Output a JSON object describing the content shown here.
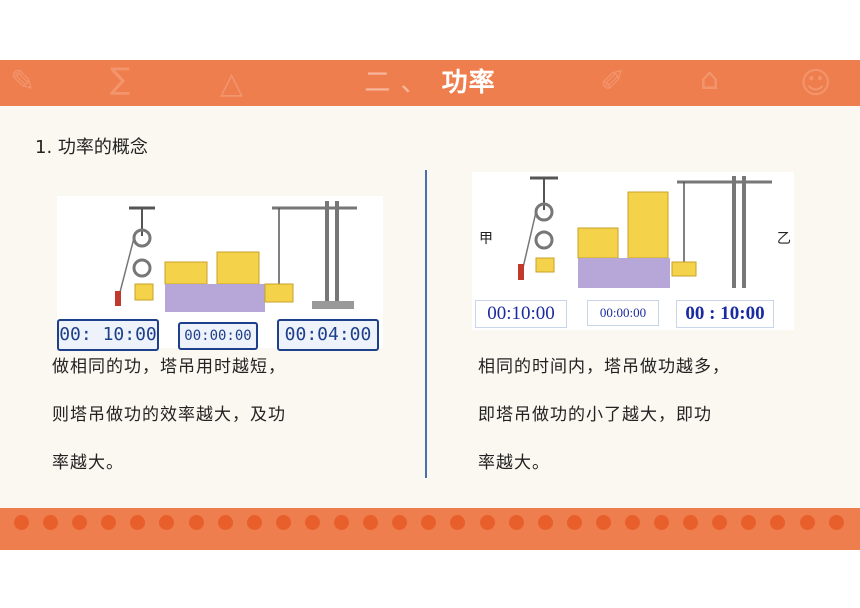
{
  "header": {
    "prefix": "二 、",
    "title": "功率"
  },
  "section_heading": "1. 功率的概念",
  "left": {
    "timers": [
      "00: 10:00",
      "00:00:00",
      "00:04:00"
    ],
    "lines": [
      "做相同的功，塔吊用时越短，",
      "则塔吊做功的效率越大，及功",
      "率越大。"
    ]
  },
  "right": {
    "label_a": "甲",
    "label_b": "乙",
    "timers": [
      "00:10:00",
      "00:00:00",
      "00 : 10:00"
    ],
    "lines": [
      "相同的时间内，塔吊做功越多，",
      "即塔吊做功的小了越大，即功",
      "率越大。"
    ]
  },
  "colors": {
    "accent": "#ef7e4e",
    "divider": "#4a6fb0",
    "timer": "#1e3f8a"
  }
}
